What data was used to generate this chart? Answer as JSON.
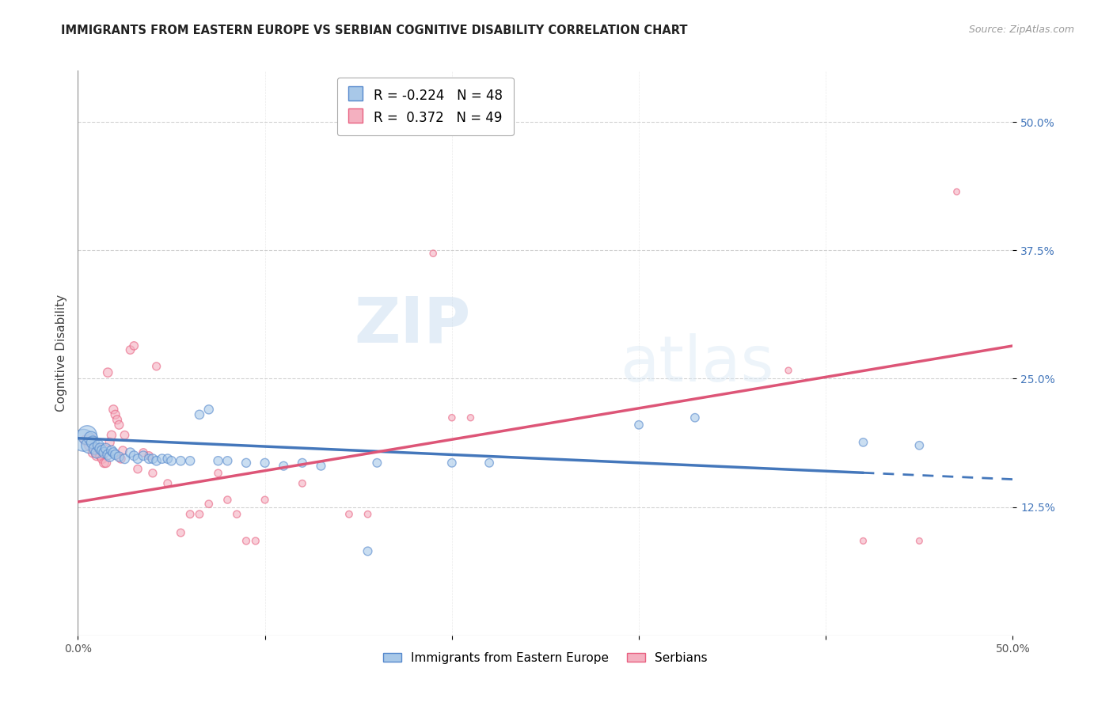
{
  "title": "IMMIGRANTS FROM EASTERN EUROPE VS SERBIAN COGNITIVE DISABILITY CORRELATION CHART",
  "source": "Source: ZipAtlas.com",
  "ylabel": "Cognitive Disability",
  "ytick_labels": [
    "12.5%",
    "25.0%",
    "37.5%",
    "50.0%"
  ],
  "ytick_values": [
    0.125,
    0.25,
    0.375,
    0.5
  ],
  "xlim": [
    0.0,
    0.5
  ],
  "ylim": [
    0.0,
    0.55
  ],
  "legend_r_blue": "-0.224",
  "legend_n_blue": "48",
  "legend_r_pink": "0.372",
  "legend_n_pink": "49",
  "blue_color": "#a8c8e8",
  "pink_color": "#f4b0c0",
  "blue_edge_color": "#5588cc",
  "pink_edge_color": "#e86080",
  "blue_line_color": "#4477bb",
  "pink_line_color": "#dd5577",
  "watermark_zip": "ZIP",
  "watermark_atlas": "atlas",
  "blue_scatter": [
    [
      0.003,
      0.19
    ],
    [
      0.005,
      0.195
    ],
    [
      0.006,
      0.185
    ],
    [
      0.007,
      0.192
    ],
    [
      0.008,
      0.188
    ],
    [
      0.009,
      0.182
    ],
    [
      0.01,
      0.178
    ],
    [
      0.011,
      0.185
    ],
    [
      0.012,
      0.182
    ],
    [
      0.013,
      0.18
    ],
    [
      0.014,
      0.178
    ],
    [
      0.015,
      0.182
    ],
    [
      0.016,
      0.176
    ],
    [
      0.017,
      0.174
    ],
    [
      0.018,
      0.18
    ],
    [
      0.019,
      0.178
    ],
    [
      0.02,
      0.176
    ],
    [
      0.022,
      0.174
    ],
    [
      0.025,
      0.172
    ],
    [
      0.028,
      0.178
    ],
    [
      0.03,
      0.175
    ],
    [
      0.032,
      0.172
    ],
    [
      0.035,
      0.175
    ],
    [
      0.038,
      0.172
    ],
    [
      0.04,
      0.172
    ],
    [
      0.042,
      0.17
    ],
    [
      0.045,
      0.172
    ],
    [
      0.048,
      0.172
    ],
    [
      0.05,
      0.17
    ],
    [
      0.055,
      0.17
    ],
    [
      0.06,
      0.17
    ],
    [
      0.065,
      0.215
    ],
    [
      0.07,
      0.22
    ],
    [
      0.075,
      0.17
    ],
    [
      0.08,
      0.17
    ],
    [
      0.09,
      0.168
    ],
    [
      0.1,
      0.168
    ],
    [
      0.11,
      0.165
    ],
    [
      0.12,
      0.168
    ],
    [
      0.13,
      0.165
    ],
    [
      0.155,
      0.082
    ],
    [
      0.16,
      0.168
    ],
    [
      0.2,
      0.168
    ],
    [
      0.22,
      0.168
    ],
    [
      0.3,
      0.205
    ],
    [
      0.33,
      0.212
    ],
    [
      0.42,
      0.188
    ],
    [
      0.45,
      0.185
    ]
  ],
  "blue_sizes": [
    400,
    300,
    200,
    150,
    130,
    110,
    100,
    100,
    95,
    90,
    88,
    85,
    82,
    80,
    80,
    78,
    76,
    75,
    74,
    73,
    72,
    71,
    70,
    70,
    70,
    69,
    68,
    68,
    67,
    67,
    66,
    66,
    65,
    65,
    64,
    63,
    62,
    61,
    61,
    60,
    60,
    59,
    58,
    58,
    57,
    57,
    56,
    56
  ],
  "pink_scatter": [
    [
      0.004,
      0.19
    ],
    [
      0.006,
      0.185
    ],
    [
      0.007,
      0.192
    ],
    [
      0.008,
      0.178
    ],
    [
      0.009,
      0.18
    ],
    [
      0.01,
      0.175
    ],
    [
      0.011,
      0.182
    ],
    [
      0.012,
      0.175
    ],
    [
      0.013,
      0.172
    ],
    [
      0.014,
      0.168
    ],
    [
      0.015,
      0.168
    ],
    [
      0.016,
      0.256
    ],
    [
      0.017,
      0.188
    ],
    [
      0.018,
      0.195
    ],
    [
      0.019,
      0.22
    ],
    [
      0.02,
      0.215
    ],
    [
      0.021,
      0.21
    ],
    [
      0.022,
      0.205
    ],
    [
      0.023,
      0.172
    ],
    [
      0.024,
      0.18
    ],
    [
      0.025,
      0.195
    ],
    [
      0.028,
      0.278
    ],
    [
      0.03,
      0.282
    ],
    [
      0.032,
      0.162
    ],
    [
      0.035,
      0.178
    ],
    [
      0.038,
      0.175
    ],
    [
      0.04,
      0.158
    ],
    [
      0.042,
      0.262
    ],
    [
      0.048,
      0.148
    ],
    [
      0.055,
      0.1
    ],
    [
      0.06,
      0.118
    ],
    [
      0.065,
      0.118
    ],
    [
      0.07,
      0.128
    ],
    [
      0.075,
      0.158
    ],
    [
      0.08,
      0.132
    ],
    [
      0.085,
      0.118
    ],
    [
      0.09,
      0.092
    ],
    [
      0.095,
      0.092
    ],
    [
      0.1,
      0.132
    ],
    [
      0.12,
      0.148
    ],
    [
      0.145,
      0.118
    ],
    [
      0.155,
      0.118
    ],
    [
      0.19,
      0.372
    ],
    [
      0.2,
      0.212
    ],
    [
      0.21,
      0.212
    ],
    [
      0.38,
      0.258
    ],
    [
      0.42,
      0.092
    ],
    [
      0.45,
      0.092
    ],
    [
      0.47,
      0.432
    ]
  ],
  "pink_sizes": [
    80,
    78,
    76,
    75,
    74,
    73,
    72,
    71,
    70,
    69,
    68,
    67,
    66,
    65,
    64,
    63,
    62,
    61,
    60,
    59,
    58,
    57,
    56,
    55,
    54,
    53,
    52,
    51,
    50,
    49,
    48,
    47,
    46,
    45,
    44,
    43,
    42,
    41,
    40,
    39,
    38,
    37,
    36,
    35,
    34,
    33,
    32,
    31,
    30
  ],
  "blue_line_start_y": 0.192,
  "blue_line_end_y": 0.152,
  "pink_line_start_y": 0.13,
  "pink_line_end_y": 0.282
}
